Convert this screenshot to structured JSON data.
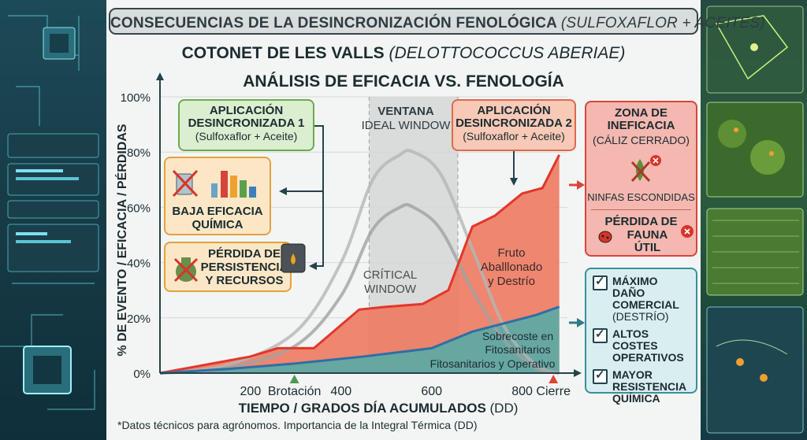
{
  "banner": {
    "title": "CONSECUENCIAS DE LA DESINCRONIZACIÓN FENOLÓGICA",
    "title_paren": "(SULFOXAFLOR + ACEITES)"
  },
  "titles": {
    "line1": "COTONET DE LES VALLS",
    "line1_italic": "(DELOTTOCOCCUS ABERIAE)",
    "line2": "ANÁLISIS DE EFICACIA VS. FENOLOGÍA"
  },
  "axes": {
    "ylabel": "% DE EVENTO / EFICACIA / PÉRDIDAS",
    "xlabel": "TIEMPO / GRADOS DÍA ACUMULADOS",
    "xlabel_unit": "(DD)"
  },
  "footnote": "*Datos técnicos para agrónomos. Importancia de la Integral Térmica (DD)",
  "boxes": {
    "app1": {
      "title_1": "APLICACIÓN",
      "title_2": "DESINCRONIZADA 1",
      "sub": "(Sulfoxaflor + Aceite)"
    },
    "app2": {
      "title_1": "APLICACIÓN",
      "title_2": "DESINCRONIZADA 2",
      "sub": "(Sulfoxaflor + Aceite)"
    },
    "low_eff": {
      "l1": "BAJA EFICACIA",
      "l2": "QUÍMICA"
    },
    "loss": {
      "l1": "PÉRDIDA DE",
      "l2": "PERSISTENCIA",
      "l3": "Y RECURSOS"
    },
    "zone": {
      "t1": "ZONA DE",
      "t2": "INEFICACIA",
      "sub": "(CÁLIZ CERRADO)",
      "ninfas": "NINFAS ESCONDIDAS",
      "fauna1": "PÉRDIDA DE",
      "fauna2": "FAUNA ÚTIL"
    },
    "checks": {
      "c1a": "MÁXIMO DAÑO",
      "c1b": "COMERCIAL",
      "c1c": "(DESTRÍO)",
      "c2a": "ALTOS COSTES",
      "c2b": "OPERATIVOS",
      "c3a": "MAYOR",
      "c3b": "RESISTENCIA",
      "c3c": "QUÍMICA"
    }
  },
  "labels": {
    "ventana": "VENTANA",
    "ideal": "IDEAL WINDOW",
    "critical1": "CRÍTICAL",
    "critical2": "WINDOW",
    "fruto1": "Fruto",
    "fruto2": "Aballlonado",
    "fruto3": "y Destrío",
    "sobre1": "Sobrecoste en",
    "sobre2": "Fitosanitarios",
    "sobre3": "Fitosanitarios y Operativo"
  },
  "colors": {
    "loss": "#ee7c64",
    "loss_line": "#e2372a",
    "cost": "#5fa9a3",
    "cost_line": "#2f6fa3",
    "window": "#d5d6d6",
    "app1": "#dbeed0",
    "app2": "#f7c9b6",
    "zone": "#f4b8b0",
    "check": "#d9eef0",
    "warn": "#fbe7c6"
  },
  "chart_data": {
    "type": "area",
    "ylim": [
      0,
      100
    ],
    "y_ticks": [
      "0%",
      "20%",
      "40%",
      "60%",
      "80%",
      "100%"
    ],
    "x_range": [
      0,
      900
    ],
    "x_ticks": [
      200,
      400,
      600,
      800
    ],
    "x_tick_labels": [
      "200",
      "400",
      "600",
      "800"
    ],
    "x_markers": [
      {
        "label": "Brotación",
        "x": 297,
        "color": "#4e9a4e"
      },
      {
        "label": "Cierre",
        "x": 869,
        "color": "#e0452f"
      }
    ],
    "shaded_window": [
      462,
      658
    ],
    "series": [
      {
        "name": "Fruto Aballlonado y Destrío",
        "x": [
          0,
          100,
          200,
          260,
          340,
          440,
          500,
          580,
          637,
          690,
          740,
          800,
          845,
          882
        ],
        "values": [
          0,
          3,
          6,
          9,
          9,
          23,
          24,
          25,
          30,
          53,
          57,
          65,
          67,
          79
        ]
      },
      {
        "name": "Sobrecoste en Fitosanitarios y Operativo",
        "x": [
          0,
          150,
          300,
          450,
          600,
          690,
          760,
          830,
          882
        ],
        "values": [
          0,
          1.5,
          3.5,
          6,
          9,
          15,
          18,
          21,
          24
        ]
      },
      {
        "name": "IDEAL WINDOW",
        "x": [
          0,
          150,
          300,
          400,
          470,
          530,
          560,
          620,
          690,
          760,
          830,
          882
        ],
        "values": [
          0,
          3,
          15,
          40,
          70,
          79,
          80,
          72,
          45,
          17,
          3,
          0
        ]
      },
      {
        "name": "CRÍTICAL WINDOW",
        "x": [
          0,
          150,
          300,
          400,
          470,
          530,
          560,
          620,
          690,
          760,
          830,
          882
        ],
        "values": [
          0,
          2,
          10,
          28,
          52,
          60,
          60,
          52,
          30,
          12,
          2,
          0
        ]
      }
    ]
  }
}
